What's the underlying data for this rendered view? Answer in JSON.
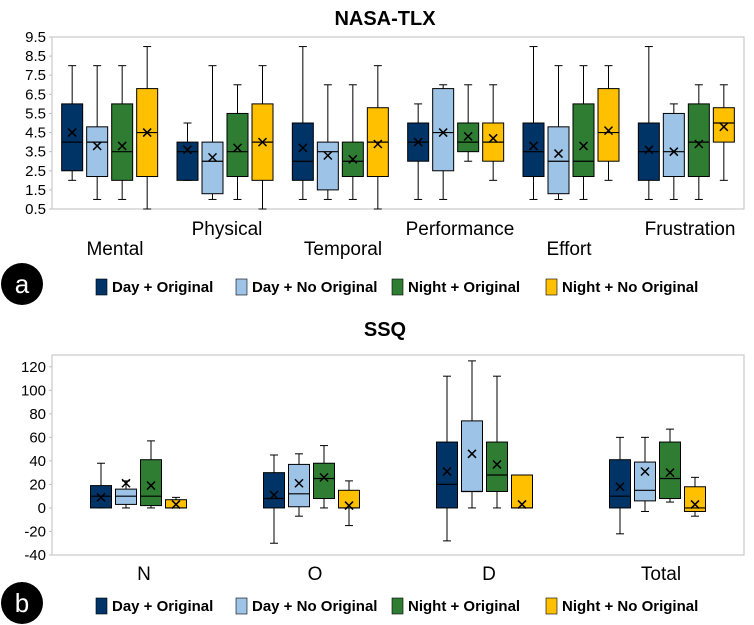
{
  "colors": {
    "day_original": "#003366",
    "day_no_original": "#9DC3E6",
    "night_original": "#2E7D32",
    "night_no_original": "#FFC000"
  },
  "chart_data": [
    {
      "panel": "a",
      "type": "box",
      "title": "NASA-TLX",
      "ylim": [
        0.5,
        9.5
      ],
      "yticks": [
        "9.5",
        "8.5",
        "7.5",
        "6.5",
        "5.5",
        "4.5",
        "3.5",
        "2.5",
        "1.5",
        "0.5"
      ],
      "ytick_values": [
        9.5,
        8.5,
        7.5,
        6.5,
        5.5,
        4.5,
        3.5,
        2.5,
        1.5,
        0.5
      ],
      "categories": [
        "Mental",
        "Physical",
        "Temporal",
        "Performance",
        "Effort",
        "Frustration"
      ],
      "legend": [
        "Day + Original",
        "Day + No Original",
        "Night + Original",
        "Night + No Original"
      ],
      "series": [
        {
          "name": "Day + Original",
          "color": "#003366",
          "boxes": [
            {
              "min": 2,
              "q1": 2.5,
              "median": 4,
              "q3": 6,
              "max": 8,
              "mean": 4.5
            },
            {
              "min": 2,
              "q1": 2,
              "median": 3.5,
              "q3": 4,
              "max": 5,
              "mean": 3.6
            },
            {
              "min": 1,
              "q1": 2,
              "median": 3,
              "q3": 5,
              "max": 9,
              "mean": 3.7
            },
            {
              "min": 1,
              "q1": 3,
              "median": 4,
              "q3": 5,
              "max": 6,
              "mean": 4
            },
            {
              "min": 1,
              "q1": 2.2,
              "median": 3.5,
              "q3": 5,
              "max": 9,
              "mean": 3.8
            },
            {
              "min": 1,
              "q1": 2,
              "median": 3.5,
              "q3": 5,
              "max": 9,
              "mean": 3.6
            }
          ]
        },
        {
          "name": "Day + No Original",
          "color": "#9DC3E6",
          "boxes": [
            {
              "min": 1,
              "q1": 2.2,
              "median": 4,
              "q3": 4.8,
              "max": 8,
              "mean": 3.8
            },
            {
              "min": 1,
              "q1": 1.3,
              "median": 3,
              "q3": 4,
              "max": 8,
              "mean": 3.2
            },
            {
              "min": 1,
              "q1": 1.5,
              "median": 3.5,
              "q3": 4,
              "max": 7,
              "mean": 3.3
            },
            {
              "min": 1,
              "q1": 2.5,
              "median": 4.5,
              "q3": 6.8,
              "max": 7,
              "mean": 4.5
            },
            {
              "min": 1,
              "q1": 1.3,
              "median": 3,
              "q3": 4.8,
              "max": 8,
              "mean": 3.4
            },
            {
              "min": 1,
              "q1": 2.2,
              "median": 3.5,
              "q3": 5.5,
              "max": 6,
              "mean": 3.5
            }
          ]
        },
        {
          "name": "Night + Original",
          "color": "#2E7D32",
          "boxes": [
            {
              "min": 1,
              "q1": 2,
              "median": 3.5,
              "q3": 6,
              "max": 8,
              "mean": 3.8
            },
            {
              "min": 1,
              "q1": 2.2,
              "median": 3.5,
              "q3": 5.5,
              "max": 7,
              "mean": 3.7
            },
            {
              "min": 1,
              "q1": 2.2,
              "median": 3,
              "q3": 4,
              "max": 7,
              "mean": 3.1
            },
            {
              "min": 3,
              "q1": 3.5,
              "median": 4,
              "q3": 5,
              "max": 7,
              "mean": 4.3
            },
            {
              "min": 1,
              "q1": 2.2,
              "median": 3,
              "q3": 6,
              "max": 8,
              "mean": 3.8
            },
            {
              "min": 1,
              "q1": 2.2,
              "median": 4,
              "q3": 6,
              "max": 7,
              "mean": 3.9
            }
          ]
        },
        {
          "name": "Night + No Original",
          "color": "#FFC000",
          "boxes": [
            {
              "min": 0.5,
              "q1": 2.2,
              "median": 4.5,
              "q3": 6.8,
              "max": 9,
              "mean": 4.5
            },
            {
              "min": 0.5,
              "q1": 2,
              "median": 4,
              "q3": 6,
              "max": 8,
              "mean": 4
            },
            {
              "min": 0.5,
              "q1": 2.2,
              "median": 4,
              "q3": 5.8,
              "max": 8,
              "mean": 3.9
            },
            {
              "min": 2,
              "q1": 3,
              "median": 4,
              "q3": 5,
              "max": 7,
              "mean": 4.2
            },
            {
              "min": 2,
              "q1": 3,
              "median": 4.5,
              "q3": 6.8,
              "max": 8,
              "mean": 4.6
            },
            {
              "min": 2,
              "q1": 4,
              "median": 5,
              "q3": 5.8,
              "max": 7,
              "mean": 4.8
            }
          ]
        }
      ]
    },
    {
      "panel": "b",
      "type": "box",
      "title": "SSQ",
      "ylim": [
        -40,
        130
      ],
      "yticks": [
        "120",
        "100",
        "80",
        "60",
        "40",
        "20",
        "0",
        "-20",
        "-40"
      ],
      "ytick_values": [
        120,
        100,
        80,
        60,
        40,
        20,
        0,
        -20,
        -40
      ],
      "categories": [
        "N",
        "O",
        "D",
        "Total"
      ],
      "legend": [
        "Day + Original",
        "Day + No Original",
        "Night + Original",
        "Night + No Original"
      ],
      "series": [
        {
          "name": "Day + Original",
          "color": "#003366",
          "boxes": [
            {
              "min": 0,
              "q1": 0,
              "median": 10,
              "q3": 19,
              "max": 38,
              "mean": 9
            },
            {
              "min": -30,
              "q1": 0,
              "median": 8,
              "q3": 30,
              "max": 45,
              "mean": 11
            },
            {
              "min": -28,
              "q1": 0,
              "median": 20,
              "q3": 56,
              "max": 112,
              "mean": 31
            },
            {
              "min": -22,
              "q1": 0,
              "median": 10,
              "q3": 41,
              "max": 60,
              "mean": 18
            }
          ]
        },
        {
          "name": "Day + No Original",
          "color": "#9DC3E6",
          "boxes": [
            {
              "min": 0,
              "q1": 3,
              "median": 10,
              "q3": 16,
              "max": 23,
              "mean": 21
            },
            {
              "min": -7,
              "q1": 1,
              "median": 12,
              "q3": 37,
              "max": 46,
              "mean": 21
            },
            {
              "min": 0,
              "q1": 14,
              "median": 14,
              "q3": 74,
              "max": 125,
              "mean": 46
            },
            {
              "min": -3,
              "q1": 6,
              "median": 15,
              "q3": 39,
              "max": 60,
              "mean": 31
            }
          ]
        },
        {
          "name": "Night + Original",
          "color": "#2E7D32",
          "boxes": [
            {
              "min": 0,
              "q1": 2,
              "median": 10,
              "q3": 41,
              "max": 57,
              "mean": 19
            },
            {
              "min": 0,
              "q1": 8,
              "median": 25,
              "q3": 38,
              "max": 53,
              "mean": 26
            },
            {
              "min": 0,
              "q1": 14,
              "median": 28,
              "q3": 56,
              "max": 112,
              "mean": 37
            },
            {
              "min": 5,
              "q1": 8,
              "median": 25,
              "q3": 56,
              "max": 67,
              "mean": 30
            }
          ]
        },
        {
          "name": "Night + No Original",
          "color": "#FFC000",
          "boxes": [
            {
              "min": 0,
              "q1": 0,
              "median": 0,
              "q3": 7,
              "max": 9,
              "mean": 3
            },
            {
              "min": -15,
              "q1": 0,
              "median": 0,
              "q3": 15,
              "max": 23,
              "mean": 2
            },
            {
              "min": 0,
              "q1": 0,
              "median": 0,
              "q3": 28,
              "max": 28,
              "mean": 3
            },
            {
              "min": -7,
              "q1": -3,
              "median": 0,
              "q3": 18,
              "max": 26,
              "mean": 3
            }
          ]
        }
      ]
    }
  ]
}
